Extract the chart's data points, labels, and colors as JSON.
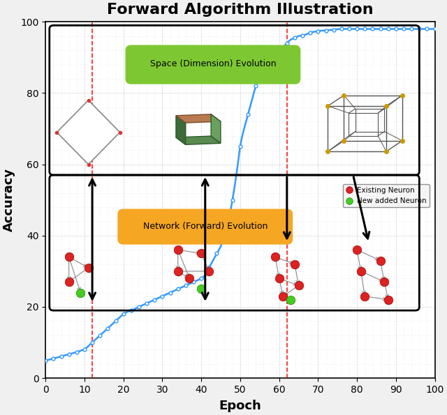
{
  "title": "Forward Algorithm Illustration",
  "xlabel": "Epoch",
  "ylabel": "Accuracy",
  "xlim": [
    0,
    100
  ],
  "ylim": [
    0,
    100
  ],
  "xticks": [
    0,
    10,
    20,
    30,
    40,
    50,
    60,
    70,
    80,
    90,
    100
  ],
  "yticks": [
    0,
    20,
    40,
    60,
    80,
    100
  ],
  "red_dashed_lines": [
    12,
    62
  ],
  "space_label": "Space (Dimension) Evolution",
  "network_label": "Network (Forward) Evolution",
  "bg_color": "#f0f0f0",
  "plot_bg": "#ffffff",
  "line_color": "#3399ff",
  "title_fontsize": 16,
  "axis_label_fontsize": 13,
  "curve_x": [
    0,
    1,
    2,
    3,
    4,
    5,
    6,
    7,
    8,
    9,
    10,
    11,
    12,
    13,
    14,
    15,
    16,
    17,
    18,
    19,
    20,
    22,
    24,
    26,
    28,
    30,
    32,
    34,
    36,
    38,
    40,
    41,
    42,
    43,
    44,
    45,
    46,
    47,
    48,
    49,
    50,
    51,
    52,
    53,
    54,
    55,
    56,
    57,
    58,
    59,
    60,
    61,
    62,
    63,
    64,
    65,
    66,
    67,
    68,
    69,
    70,
    72,
    74,
    76,
    78,
    80,
    82,
    84,
    86,
    88,
    90,
    92,
    94,
    96,
    98,
    100
  ],
  "curve_y": [
    5,
    5.2,
    5.5,
    5.8,
    6.1,
    6.4,
    6.7,
    7.0,
    7.3,
    7.7,
    8.1,
    9,
    10,
    11,
    12,
    13,
    14,
    15,
    16,
    17,
    18,
    19,
    20,
    21,
    22,
    23,
    24,
    25,
    26,
    27,
    28,
    29,
    31,
    33,
    35,
    37,
    40,
    44,
    50,
    57,
    65,
    70,
    74,
    78,
    82,
    85,
    87,
    89,
    90,
    91,
    92,
    93,
    94,
    95,
    95.5,
    96,
    96.2,
    96.5,
    97,
    97.2,
    97.4,
    97.6,
    97.8,
    98,
    98,
    98,
    98,
    98,
    98,
    98,
    98,
    98,
    98,
    98,
    98,
    98
  ]
}
